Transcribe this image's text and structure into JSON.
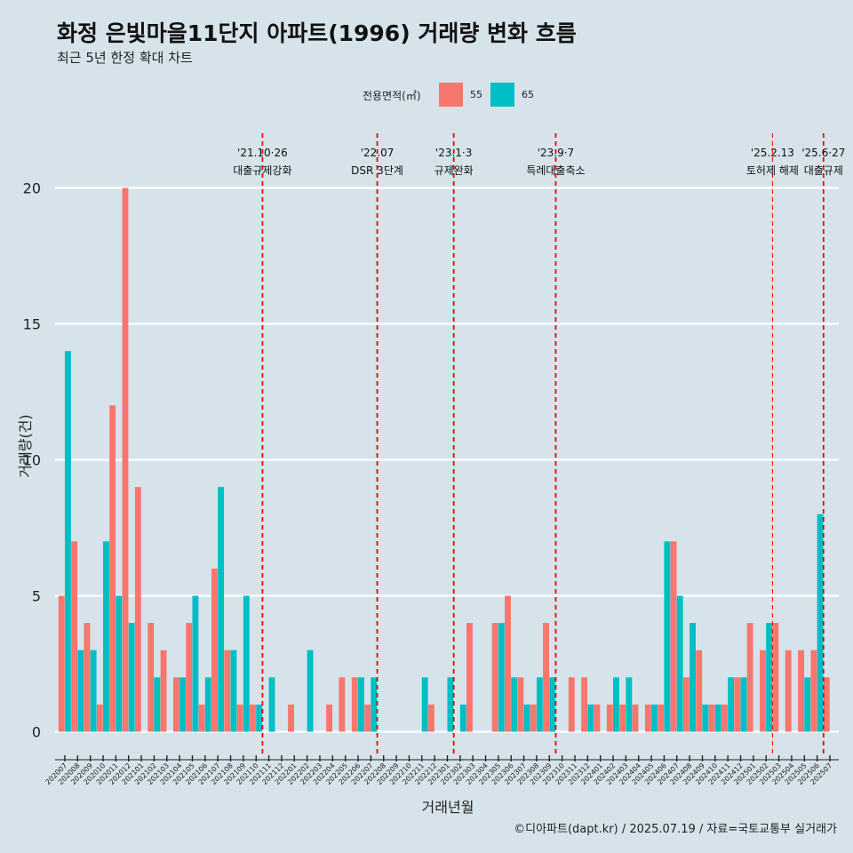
{
  "title": "화정 은빛마을11단지 아파트(1996) 거래량 변화 흐름",
  "subtitle": "최근 5년 한정 확대 차트",
  "legend": {
    "title": "전용면적(㎡)",
    "items": [
      {
        "label": "55",
        "color": "#f8766d"
      },
      {
        "label": "65",
        "color": "#00bfc4"
      }
    ]
  },
  "caption": "©디아파트(dapt.kr) / 2025.07.19 / 자료=국토교통부 실거래가",
  "chart_data": {
    "type": "bar",
    "title": "화정 은빛마을11단지 아파트(1996) 거래량 변화 흐름",
    "xlabel": "거래년월",
    "ylabel": "거래량(건)",
    "ylim": [
      -0.8,
      22
    ],
    "yticks": [
      0,
      5,
      10,
      15,
      20
    ],
    "categories": [
      "202007",
      "202008",
      "202009",
      "202010",
      "202011",
      "202012",
      "202101",
      "202102",
      "202103",
      "202104",
      "202105",
      "202106",
      "202107",
      "202108",
      "202109",
      "202110",
      "202111",
      "202112",
      "202201",
      "202202",
      "202203",
      "202204",
      "202205",
      "202206",
      "202207",
      "202208",
      "202209",
      "202210",
      "202211",
      "202212",
      "202301",
      "202302",
      "202303",
      "202304",
      "202305",
      "202306",
      "202307",
      "202308",
      "202309",
      "202310",
      "202311",
      "202312",
      "202401",
      "202402",
      "202403",
      "202404",
      "202405",
      "202406",
      "202407",
      "202408",
      "202409",
      "202410",
      "202411",
      "202412",
      "202501",
      "202502",
      "202503",
      "202504",
      "202505",
      "202506",
      "202507"
    ],
    "series": [
      {
        "name": "55",
        "color": "#f8766d",
        "values": [
          5,
          7,
          4,
          1,
          12,
          20,
          9,
          4,
          3,
          2,
          4,
          1,
          6,
          3,
          1,
          1,
          0,
          0,
          1,
          0,
          0,
          1,
          2,
          2,
          1,
          0,
          0,
          0,
          0,
          1,
          0,
          0,
          4,
          0,
          4,
          5,
          2,
          1,
          4,
          0,
          2,
          2,
          1,
          1,
          1,
          1,
          1,
          1,
          7,
          2,
          3,
          1,
          1,
          2,
          4,
          3,
          4,
          3,
          3,
          3,
          2
        ]
      },
      {
        "name": "65",
        "color": "#00bfc4",
        "values": [
          14,
          3,
          3,
          7,
          5,
          4,
          0,
          2,
          0,
          2,
          5,
          2,
          9,
          3,
          5,
          1,
          2,
          0,
          0,
          3,
          0,
          0,
          0,
          2,
          2,
          0,
          0,
          0,
          2,
          0,
          2,
          1,
          0,
          0,
          4,
          2,
          1,
          2,
          2,
          0,
          0,
          1,
          0,
          2,
          2,
          0,
          1,
          7,
          5,
          4,
          1,
          1,
          2,
          2,
          0,
          4,
          0,
          0,
          2,
          8,
          0
        ]
      }
    ],
    "events": [
      {
        "at": "202110",
        "date": "'21.10·26",
        "label": "대출규제강화"
      },
      {
        "at": "202207",
        "date": "'22.07",
        "label": "DSR 3단계"
      },
      {
        "at": "202301",
        "date": "'23.1·3",
        "label": "규제완화"
      },
      {
        "at": "202309",
        "date": "'23.9·7",
        "label": "특례대출축소"
      },
      {
        "at": "202502",
        "date": "'25.2.13",
        "label": "토허제 해제"
      },
      {
        "at": "202506",
        "date": "'25.6·27",
        "label": "대출규제"
      }
    ]
  }
}
